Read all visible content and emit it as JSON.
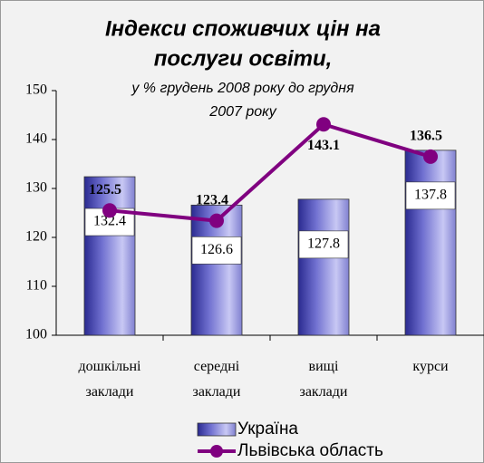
{
  "chart_data": {
    "type": "bar-line",
    "title": [
      "Індекси споживчих цін на",
      "послуги освіти,"
    ],
    "subtitle": [
      "у % грудень 2008 року до грудня",
      "2007 року"
    ],
    "categories": [
      "дошкільні заклади",
      "середні заклади",
      "вищі заклади",
      "курси"
    ],
    "series": [
      {
        "name": "Україна",
        "color": "#5050b0",
        "type": "bar",
        "values": [
          132.4,
          126.6,
          127.8,
          137.8
        ]
      },
      {
        "name": "Львівська область",
        "color": "#800080",
        "type": "line",
        "values": [
          125.5,
          123.4,
          143.1,
          136.5
        ]
      }
    ],
    "ylim": [
      100,
      150
    ],
    "yticks": [
      100,
      110,
      120,
      130,
      140,
      150
    ],
    "grid": false
  }
}
